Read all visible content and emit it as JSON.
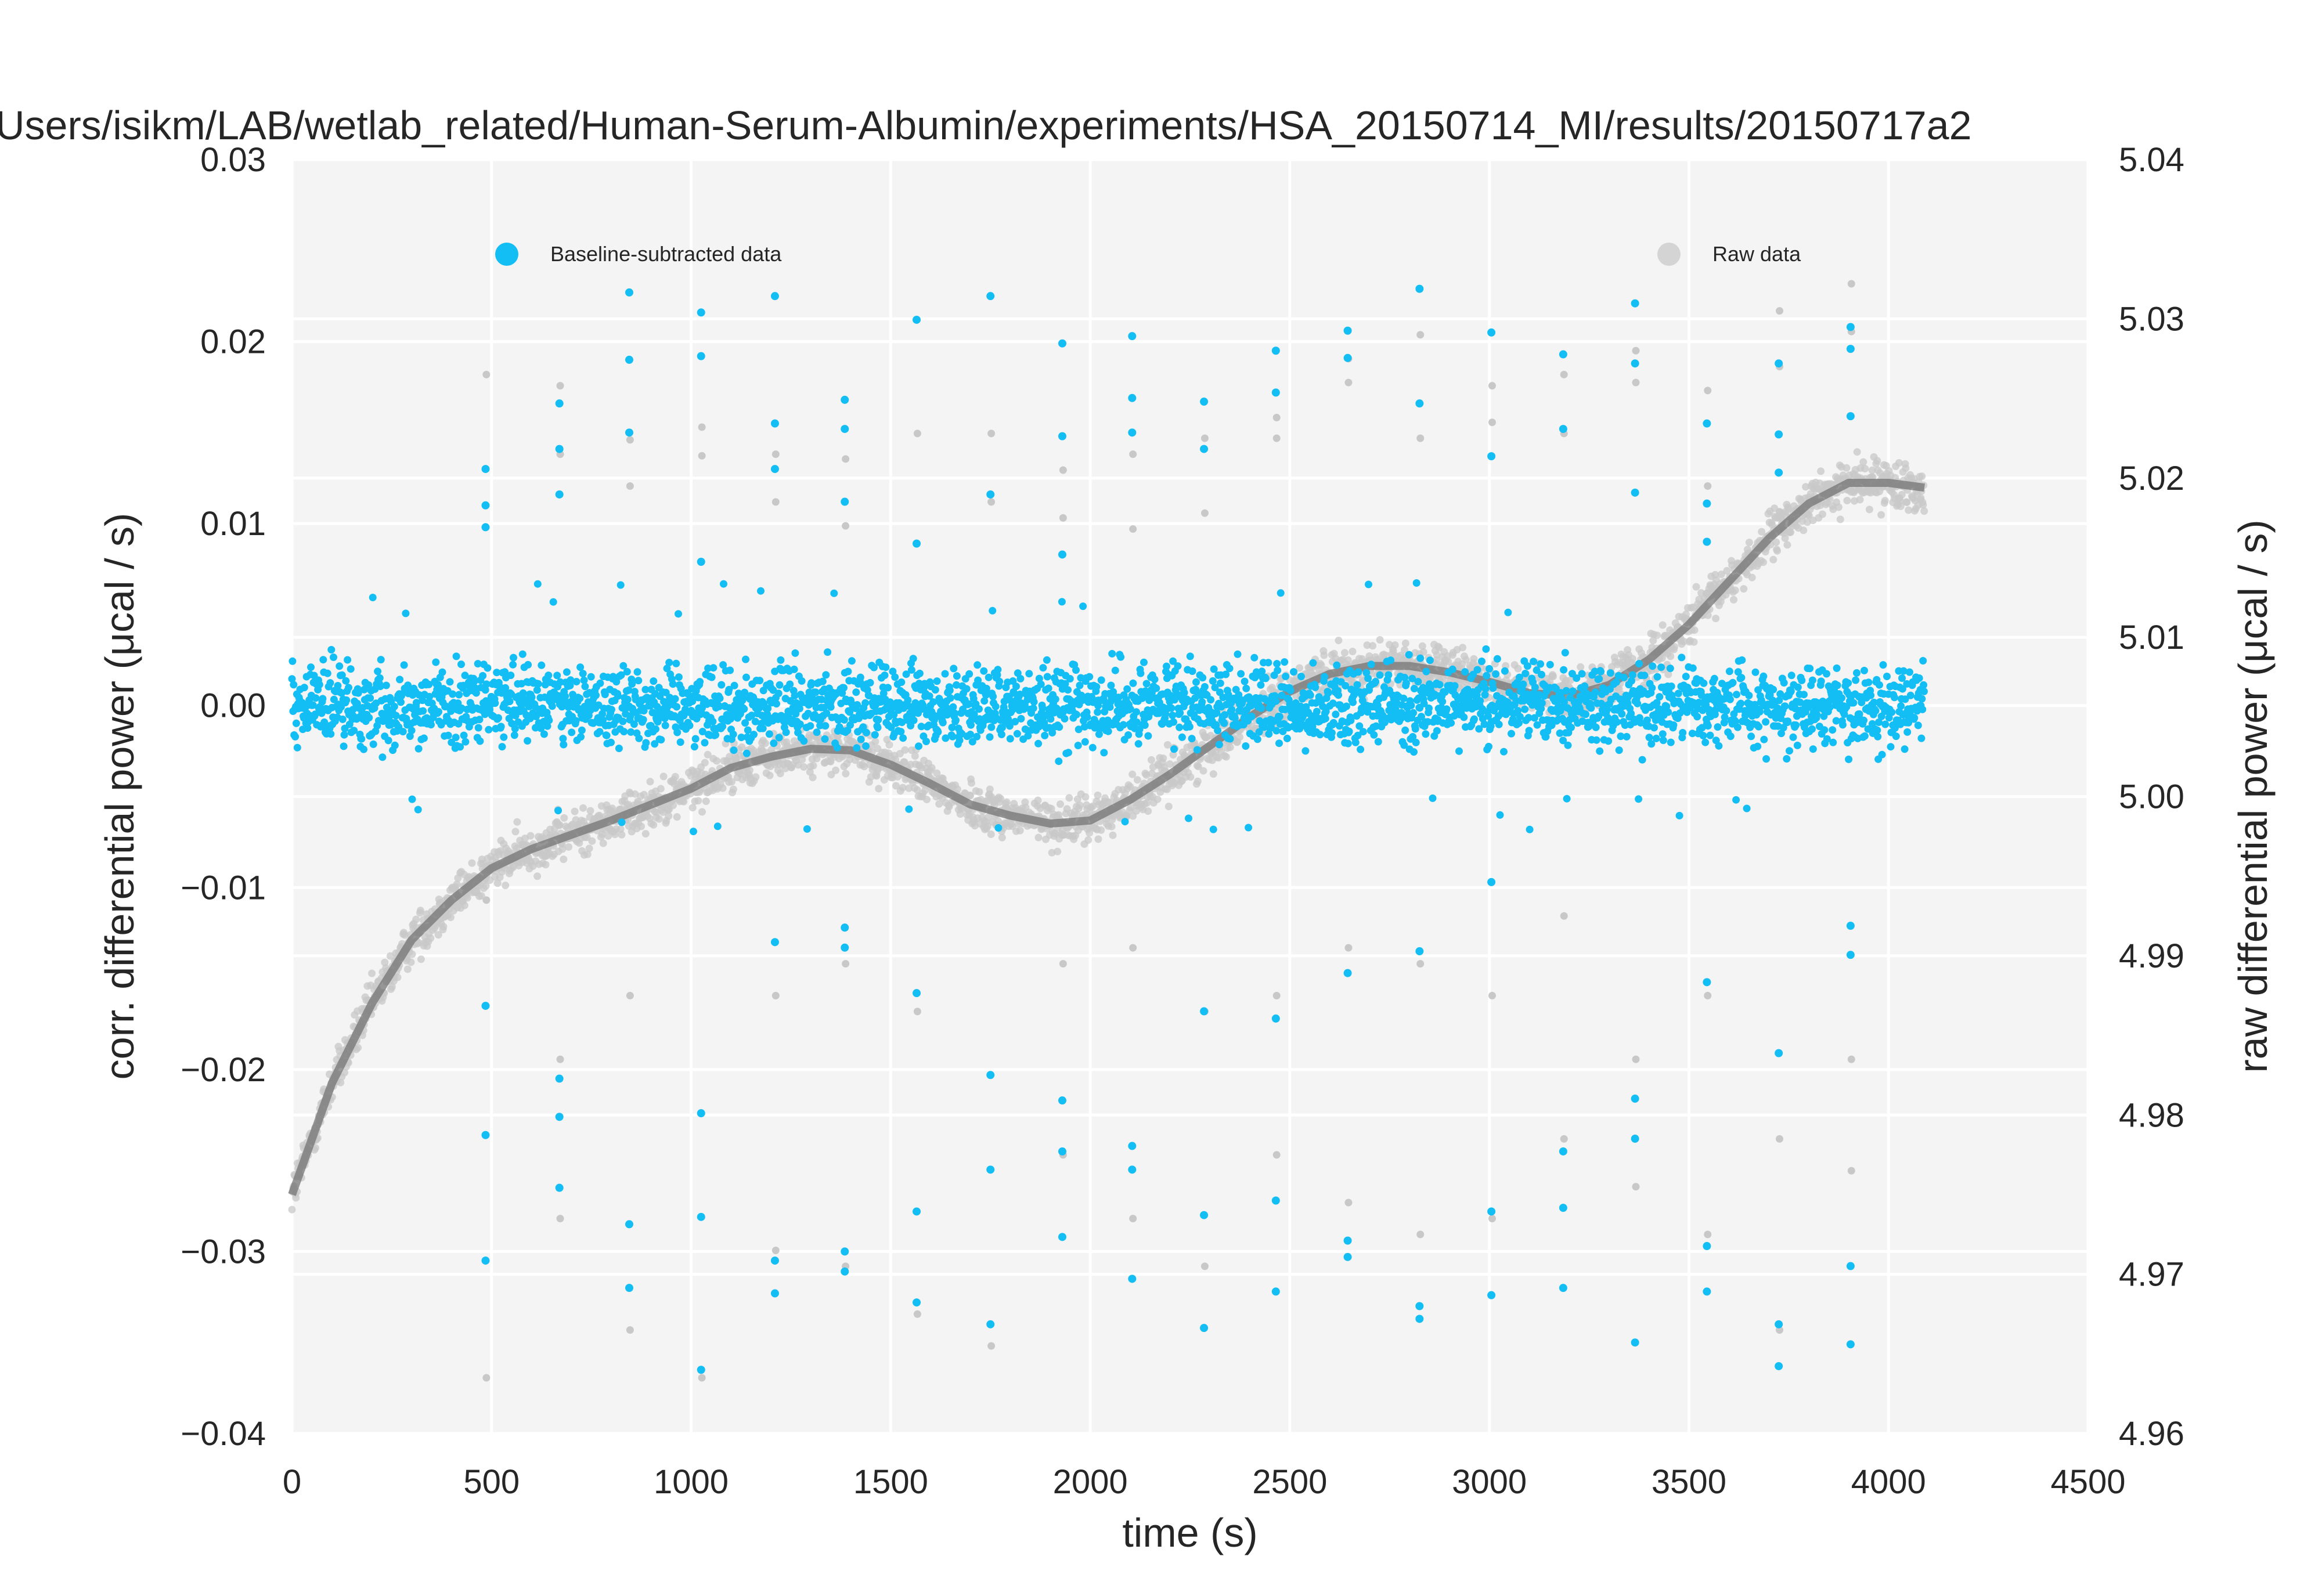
{
  "chart_data": {
    "type": "scatter",
    "title": "Users/isikm/LAB/wetlab_related/Human-Serum-Albumin/experiments/HSA_20150714_MI/results/20150717a2",
    "xlabel": "time (s)",
    "ylabel": "corr. differential power (μcal / s)",
    "ylabel_right": "raw differential power (μcal / s)",
    "xlim": [
      0,
      4500
    ],
    "ylim": [
      -0.04,
      0.03
    ],
    "ylim_right": [
      4.96,
      5.04
    ],
    "xticks": [
      "0",
      "500",
      "1000",
      "1500",
      "2000",
      "2500",
      "3000",
      "3500",
      "4000",
      "4500"
    ],
    "yticks": [
      "−0.04",
      "−0.03",
      "−0.02",
      "−0.01",
      "0.00",
      "0.01",
      "0.02",
      "0.03"
    ],
    "yticks_right": [
      "4.96",
      "4.97",
      "4.98",
      "4.99",
      "5.00",
      "5.01",
      "5.02",
      "5.03",
      "5.04"
    ],
    "grid": true,
    "colors": {
      "background": "#f4f4f4",
      "grid": "#ffffff",
      "baseline_subtracted": "#13bef5",
      "raw": "#c8c8c8",
      "fit": "#6e6e6e"
    },
    "legend": [
      {
        "label": "Baseline-subtracted data",
        "placement": "top-left"
      },
      {
        "label": "Raw data",
        "placement": "top-right"
      }
    ],
    "series": [
      {
        "name": "Baseline-subtracted data",
        "axis": "left",
        "description_of_spread": "noise band approx -0.005 to 0.005 around 0",
        "time_range": [
          0,
          4090
        ],
        "band": [
          -0.005,
          0.005
        ],
        "injection_spikes": [
          {
            "x": 485,
            "y": [
              0.013,
              0.011,
              0.0098,
              -0.0165,
              -0.0236,
              -0.0305
            ]
          },
          {
            "x": 670,
            "y": [
              0.0166,
              0.0141,
              0.0116,
              -0.0205,
              -0.0226,
              -0.0265
            ]
          },
          {
            "x": 845,
            "y": [
              0.0227,
              0.019,
              0.015,
              -0.0285,
              -0.032
            ]
          },
          {
            "x": 1025,
            "y": [
              0.0216,
              0.0192,
              0.0079,
              -0.0224,
              -0.0281,
              -0.0365
            ]
          },
          {
            "x": 1210,
            "y": [
              0.0225,
              0.0155,
              0.013,
              -0.013,
              -0.0305,
              -0.0323
            ]
          },
          {
            "x": 1385,
            "y": [
              0.0168,
              0.0152,
              0.0112,
              -0.0122,
              -0.0133,
              -0.03,
              -0.0311
            ]
          },
          {
            "x": 1565,
            "y": [
              0.0212,
              0.0089,
              -0.0158,
              -0.0278,
              -0.0328
            ]
          },
          {
            "x": 1750,
            "y": [
              0.0225,
              0.0116,
              -0.0203,
              -0.0255,
              -0.034
            ]
          },
          {
            "x": 1930,
            "y": [
              0.0199,
              0.0148,
              0.0083,
              -0.0217,
              -0.0245,
              -0.0292
            ]
          },
          {
            "x": 2105,
            "y": [
              0.0203,
              0.0169,
              0.015,
              -0.0242,
              -0.0255,
              -0.0315
            ]
          },
          {
            "x": 2285,
            "y": [
              0.0167,
              0.0141,
              -0.0168,
              -0.028,
              -0.0342
            ]
          },
          {
            "x": 2465,
            "y": [
              0.0195,
              0.0172,
              -0.0172,
              -0.0272,
              -0.0322
            ]
          },
          {
            "x": 2645,
            "y": [
              0.0206,
              0.0191,
              -0.0147,
              -0.0294,
              -0.0303
            ]
          },
          {
            "x": 2825,
            "y": [
              0.0229,
              0.0166,
              -0.0135,
              -0.033,
              -0.0337
            ]
          },
          {
            "x": 3005,
            "y": [
              0.0205,
              0.0137,
              -0.0097,
              -0.0278,
              -0.0324
            ]
          },
          {
            "x": 3185,
            "y": [
              0.0193,
              0.0152,
              -0.0245,
              -0.0276,
              -0.032
            ]
          },
          {
            "x": 3365,
            "y": [
              0.0221,
              0.0188,
              0.0117,
              -0.0216,
              -0.0238,
              -0.035
            ]
          },
          {
            "x": 3545,
            "y": [
              0.0155,
              0.0111,
              0.009,
              -0.0152,
              -0.0297,
              -0.0322
            ]
          },
          {
            "x": 3725,
            "y": [
              0.0188,
              0.0149,
              0.0128,
              -0.0191,
              -0.034,
              -0.0363
            ]
          },
          {
            "x": 3905,
            "y": [
              0.0208,
              0.0196,
              0.0159,
              -0.0121,
              -0.0137,
              -0.0308,
              -0.0351
            ]
          }
        ]
      },
      {
        "name": "Raw data",
        "axis": "right",
        "fit_curve": {
          "x": [
            0,
            100,
            200,
            300,
            400,
            500,
            600,
            700,
            800,
            900,
            1000,
            1100,
            1200,
            1300,
            1400,
            1500,
            1600,
            1700,
            1800,
            1900,
            2000,
            2100,
            2200,
            2300,
            2400,
            2500,
            2600,
            2700,
            2800,
            2900,
            3000,
            3100,
            3200,
            3300,
            3400,
            3500,
            3600,
            3700,
            3800,
            3900,
            4000,
            4090
          ],
          "y": [
            4.975,
            4.982,
            4.987,
            4.991,
            4.9935,
            4.9955,
            4.9967,
            4.9976,
            4.9985,
            4.9995,
            5.0005,
            5.0018,
            5.0025,
            5.003,
            5.0029,
            5.002,
            5.0008,
            4.9995,
            4.9988,
            4.9983,
            4.9985,
            4.9998,
            5.0014,
            5.0032,
            5.005,
            5.0066,
            5.0077,
            5.0082,
            5.0082,
            5.0078,
            5.0072,
            5.0065,
            5.0063,
            5.007,
            5.0086,
            5.0108,
            5.0135,
            5.0162,
            5.0184,
            5.0197,
            5.0197,
            5.0194
          ]
        },
        "scatter_spread": 0.0025,
        "injection_spikes": [
          {
            "x": 485,
            "y": [
              5.0265,
              4.9935,
              4.9635
            ]
          },
          {
            "x": 670,
            "y": [
              5.0258,
              5.0215,
              4.9835,
              4.9735
            ]
          },
          {
            "x": 845,
            "y": [
              5.0224,
              5.0195,
              4.9875,
              4.9665
            ]
          },
          {
            "x": 1025,
            "y": [
              5.0232,
              5.0214,
              4.9635
            ]
          },
          {
            "x": 1210,
            "y": [
              5.0215,
              5.0185,
              4.9875,
              4.9715
            ]
          },
          {
            "x": 1385,
            "y": [
              5.0212,
              5.017,
              4.9895,
              4.9705
            ]
          },
          {
            "x": 1565,
            "y": [
              5.0228,
              4.9865,
              4.9675
            ]
          },
          {
            "x": 1750,
            "y": [
              5.0228,
              5.0185,
              4.9655
            ]
          },
          {
            "x": 1930,
            "y": [
              5.0205,
              5.0175,
              4.9895,
              4.9775
            ]
          },
          {
            "x": 2105,
            "y": [
              5.0215,
              5.0168,
              4.9905,
              4.9735
            ]
          },
          {
            "x": 2285,
            "y": [
              5.0225,
              5.0178,
              4.9865,
              4.9705
            ]
          },
          {
            "x": 2465,
            "y": [
              5.0238,
              5.0225,
              4.9875,
              4.9775
            ]
          },
          {
            "x": 2645,
            "y": [
              5.0275,
              5.026,
              4.9905,
              4.9745
            ]
          },
          {
            "x": 2825,
            "y": [
              5.029,
              5.0225,
              4.9895,
              4.9725
            ]
          },
          {
            "x": 3005,
            "y": [
              5.0258,
              5.0235,
              4.9875,
              4.9735
            ]
          },
          {
            "x": 3185,
            "y": [
              5.0265,
              5.0228,
              4.9925,
              4.9785
            ]
          },
          {
            "x": 3365,
            "y": [
              5.028,
              5.026,
              4.9835,
              4.9755
            ]
          },
          {
            "x": 3545,
            "y": [
              5.0255,
              5.0195,
              4.9875,
              4.9725
            ]
          },
          {
            "x": 3725,
            "y": [
              5.0305,
              5.027,
              4.9785,
              4.9665
            ]
          },
          {
            "x": 3905,
            "y": [
              5.0322,
              5.0292,
              4.9835,
              4.9765
            ]
          }
        ]
      }
    ]
  }
}
